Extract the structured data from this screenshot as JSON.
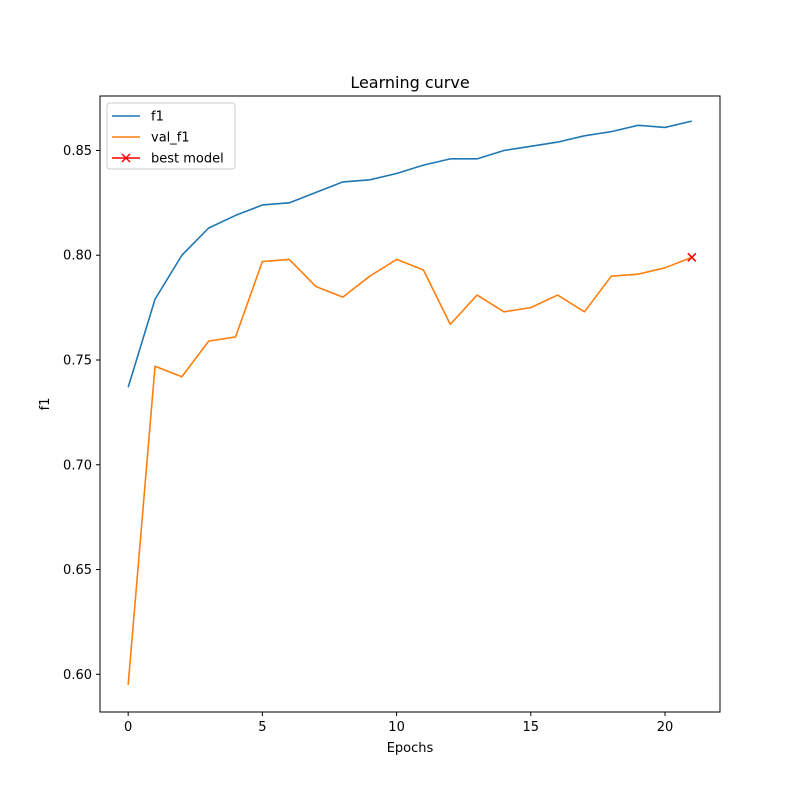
{
  "chart_data": {
    "type": "line",
    "title": "Learning curve",
    "xlabel": "Epochs",
    "ylabel": "f1",
    "xlim": [
      -1.05,
      22.05
    ],
    "ylim": [
      0.582,
      0.876
    ],
    "xticks": [
      0,
      5,
      10,
      15,
      20
    ],
    "yticks": [
      0.6,
      0.65,
      0.7,
      0.75,
      0.8,
      0.85
    ],
    "ytick_labels": [
      "0.60",
      "0.65",
      "0.70",
      "0.75",
      "0.80",
      "0.85"
    ],
    "grid": false,
    "legend_position": "top-left",
    "x": [
      0,
      1,
      2,
      3,
      4,
      5,
      6,
      7,
      8,
      9,
      10,
      11,
      12,
      13,
      14,
      15,
      16,
      17,
      18,
      19,
      20,
      21
    ],
    "series": [
      {
        "name": "f1",
        "color": "#1f77b4",
        "values": [
          0.737,
          0.779,
          0.8,
          0.813,
          0.819,
          0.824,
          0.825,
          0.83,
          0.835,
          0.836,
          0.839,
          0.843,
          0.846,
          0.846,
          0.85,
          0.852,
          0.854,
          0.857,
          0.859,
          0.862,
          0.861,
          0.864
        ]
      },
      {
        "name": "val_f1",
        "color": "#ff7f0e",
        "values": [
          0.595,
          0.747,
          0.742,
          0.759,
          0.761,
          0.797,
          0.798,
          0.785,
          0.78,
          0.79,
          0.798,
          0.793,
          0.767,
          0.781,
          0.773,
          0.775,
          0.781,
          0.773,
          0.79,
          0.791,
          0.794,
          0.799
        ]
      }
    ],
    "markers": [
      {
        "name": "best model",
        "color": "#ff0000",
        "marker": "x",
        "x": 21,
        "y": 0.799
      }
    ]
  }
}
